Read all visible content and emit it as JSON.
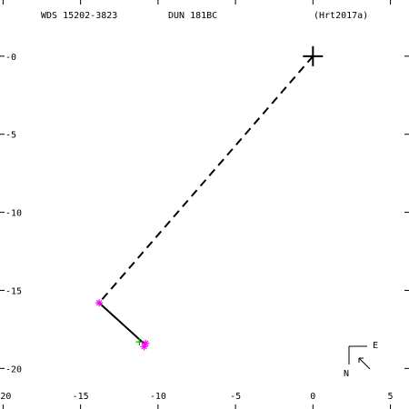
{
  "chart_data": {
    "type": "orbit",
    "labels": [
      "WDS 15202-3823",
      "DUN 181BC",
      "(Hrt2017a)"
    ],
    "xlim": [
      -20.2,
      6.2
    ],
    "ylim": [
      -22.6,
      3.6
    ],
    "xticks": [
      -20,
      -15,
      -10,
      -5,
      0,
      5
    ],
    "yticks": [
      {
        "value": 0,
        "label": "-0"
      },
      -5,
      -10,
      -15,
      -20
    ],
    "series": [
      {
        "color": "#000000",
        "style": "dashed",
        "x": [
          0,
          -13.8
        ],
        "values": [
          0,
          -15.8
        ]
      },
      {
        "color": "#000000",
        "style": "solid",
        "x": [
          -13.8,
          -10.8
        ],
        "values": [
          -15.8,
          -18.5
        ]
      },
      {
        "color": "#ff00ff",
        "marker": "asterisk",
        "x": [
          -13.8,
          -10.8,
          -10.9
        ],
        "values": [
          -15.8,
          -18.4,
          -18.6
        ]
      },
      {
        "color": "#00aa00",
        "marker": "plus",
        "x": [
          -11.2
        ],
        "values": [
          -18.3
        ]
      },
      {
        "color": "#000000",
        "marker": "big-plus",
        "x": [
          0
        ],
        "values": [
          0
        ]
      }
    ],
    "compass": {
      "east": "E",
      "north": "N"
    }
  }
}
